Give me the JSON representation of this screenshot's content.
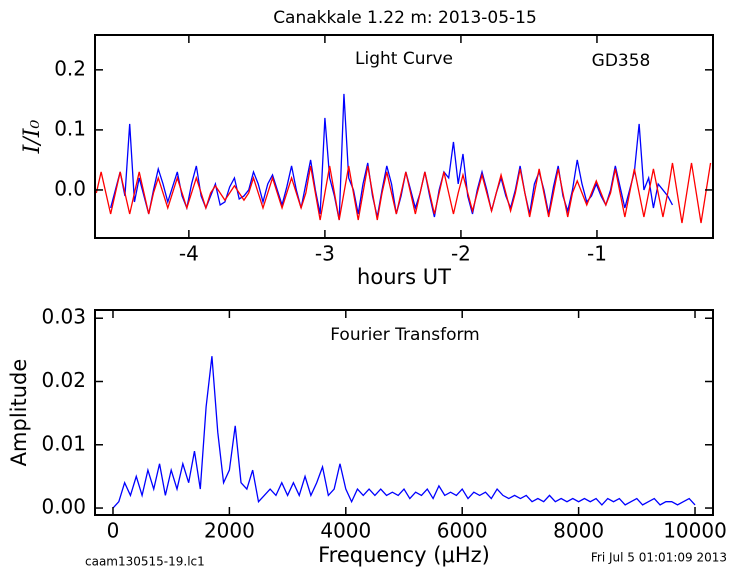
{
  "chart_data": [
    {
      "type": "line",
      "title": "Canakkale 1.22 m:  2013-05-15",
      "x_label": "hours UT",
      "y_label": "I/I₀",
      "annotations": [
        "Light Curve",
        "GD358"
      ],
      "xlim": [
        -4.69,
        -0.147
      ],
      "ylim": [
        -0.08,
        0.258
      ],
      "xticks": [
        -4,
        -3,
        -2,
        -1
      ],
      "yticks": [
        {
          "value": 0,
          "label": "0.0"
        },
        0.1,
        0.2
      ],
      "x": [
        -4.68,
        -4.645,
        -4.61,
        -4.575,
        -4.54,
        -4.505,
        -4.47,
        -4.435,
        -4.4,
        -4.365,
        -4.33,
        -4.295,
        -4.26,
        -4.225,
        -4.19,
        -4.155,
        -4.12,
        -4.085,
        -4.05,
        -4.015,
        -3.98,
        -3.945,
        -3.91,
        -3.875,
        -3.84,
        -3.805,
        -3.77,
        -3.735,
        -3.7,
        -3.665,
        -3.63,
        -3.595,
        -3.56,
        -3.525,
        -3.49,
        -3.455,
        -3.42,
        -3.385,
        -3.35,
        -3.315,
        -3.28,
        -3.245,
        -3.21,
        -3.175,
        -3.14,
        -3.105,
        -3.07,
        -3.035,
        -3.0,
        -2.965,
        -2.93,
        -2.895,
        -2.86,
        -2.825,
        -2.79,
        -2.755,
        -2.72,
        -2.685,
        -2.65,
        -2.615,
        -2.58,
        -2.545,
        -2.51,
        -2.475,
        -2.44,
        -2.405,
        -2.37,
        -2.335,
        -2.3,
        -2.265,
        -2.23,
        -2.195,
        -2.16,
        -2.125,
        -2.09,
        -2.055,
        -2.02,
        -1.985,
        -1.95,
        -1.915,
        -1.88,
        -1.845,
        -1.81,
        -1.775,
        -1.74,
        -1.705,
        -1.67,
        -1.635,
        -1.6,
        -1.565,
        -1.53,
        -1.495,
        -1.46,
        -1.425,
        -1.39,
        -1.355,
        -1.32,
        -1.285,
        -1.25,
        -1.215,
        -1.18,
        -1.145,
        -1.11,
        -1.075,
        -1.04,
        -1.005,
        -0.97,
        -0.935,
        -0.9,
        -0.865,
        -0.83,
        -0.795,
        -0.76,
        -0.725,
        -0.69,
        -0.655,
        -0.62,
        -0.585,
        -0.55,
        -0.515,
        -0.48,
        -0.445,
        -0.41,
        -0.375,
        -0.34,
        -0.305,
        -0.27,
        -0.235,
        -0.2,
        -0.165
      ],
      "series": [
        {
          "color": "#0000ff",
          "values": [
            null,
            null,
            null,
            -0.03,
            0.0,
            0.03,
            -0.01,
            0.11,
            -0.02,
            0.02,
            -0.01,
            -0.04,
            0.0,
            0.035,
            0.01,
            -0.02,
            0.005,
            0.03,
            -0.01,
            -0.03,
            0.01,
            0.04,
            -0.01,
            -0.03,
            -0.01,
            0.01,
            -0.025,
            -0.02,
            0.005,
            0.02,
            -0.015,
            -0.01,
            0.0,
            0.03,
            0.01,
            -0.02,
            0.01,
            0.025,
            0.0,
            -0.025,
            0.005,
            0.04,
            0.0,
            -0.03,
            0.01,
            0.05,
            0.0,
            -0.04,
            0.12,
            0.02,
            -0.01,
            -0.05,
            0.16,
            0.02,
            0.0,
            -0.04,
            0.01,
            0.045,
            -0.01,
            -0.045,
            0.0,
            0.04,
            0.01,
            -0.04,
            -0.01,
            0.03,
            0.0,
            -0.03,
            -0.005,
            0.03,
            -0.01,
            -0.045,
            0.0,
            0.03,
            0.02,
            0.08,
            0.01,
            0.06,
            -0.01,
            -0.04,
            0.0,
            0.03,
            0.0,
            -0.035,
            -0.005,
            0.02,
            -0.01,
            -0.03,
            0.0,
            0.04,
            -0.005,
            -0.04,
            0.01,
            0.03,
            0.0,
            -0.04,
            0.005,
            0.04,
            -0.01,
            -0.035,
            0.0,
            0.05,
            0.01,
            -0.02,
            -0.01,
            0.01,
            -0.01,
            -0.025,
            0.0,
            0.04,
            0.005,
            -0.03,
            0.0,
            0.03,
            0.11,
            0.0,
            0.02,
            -0.03,
            0.01,
            0.0,
            -0.01,
            -0.025,
            null,
            null,
            null,
            null,
            null,
            null,
            null,
            null
          ]
        },
        {
          "color": "#ff0000",
          "values": [
            -0.005,
            0.03,
            -0.005,
            -0.04,
            -0.005,
            0.03,
            -0.005,
            -0.04,
            -0.005,
            0.03,
            -0.005,
            -0.04,
            -0.005,
            0.02,
            -0.005,
            -0.03,
            -0.005,
            0.02,
            -0.005,
            -0.03,
            -0.005,
            0.02,
            -0.005,
            -0.03,
            -0.005,
            0.007,
            -0.005,
            -0.017,
            -0.005,
            0.007,
            -0.005,
            -0.017,
            -0.005,
            0.02,
            -0.005,
            -0.03,
            -0.005,
            0.02,
            -0.005,
            -0.03,
            -0.005,
            0.02,
            -0.005,
            -0.03,
            -0.005,
            0.04,
            -0.005,
            -0.05,
            -0.005,
            0.04,
            -0.005,
            -0.05,
            -0.005,
            0.04,
            -0.005,
            -0.05,
            -0.005,
            0.04,
            -0.005,
            -0.05,
            -0.005,
            0.03,
            -0.005,
            -0.04,
            -0.005,
            0.03,
            -0.005,
            -0.04,
            -0.005,
            0.03,
            -0.005,
            -0.04,
            -0.005,
            0.03,
            -0.005,
            -0.04,
            -0.005,
            0.025,
            -0.005,
            -0.035,
            -0.005,
            0.025,
            -0.005,
            -0.035,
            -0.005,
            0.025,
            -0.005,
            -0.035,
            -0.005,
            0.035,
            -0.005,
            -0.045,
            -0.005,
            0.035,
            -0.005,
            -0.045,
            -0.005,
            0.035,
            -0.005,
            -0.045,
            -0.005,
            0.015,
            -0.005,
            -0.025,
            -0.005,
            0.015,
            -0.005,
            -0.025,
            -0.005,
            0.035,
            -0.005,
            -0.045,
            -0.005,
            0.035,
            -0.005,
            -0.045,
            -0.005,
            0.035,
            -0.005,
            -0.045,
            -0.005,
            0.045,
            -0.005,
            -0.055,
            -0.005,
            0.045,
            -0.005,
            -0.055,
            -0.005,
            0.045
          ]
        }
      ]
    },
    {
      "type": "line",
      "x_label": "Frequency (μHz)",
      "y_label": "Amplitude",
      "annotations": [
        "Fourier Transform"
      ],
      "xlim": [
        -309,
        10309
      ],
      "ylim": [
        -0.0011,
        0.0313
      ],
      "xticks": [
        0,
        2000,
        4000,
        6000,
        8000,
        10000
      ],
      "yticks": [
        {
          "value": 0,
          "label": "0.00"
        },
        {
          "value": 0.01,
          "label": "0.01"
        },
        {
          "value": 0.02,
          "label": "0.02"
        },
        {
          "value": 0.03,
          "label": "0.03"
        }
      ],
      "x": [
        0,
        100,
        200,
        300,
        400,
        500,
        600,
        700,
        800,
        900,
        1000,
        1100,
        1200,
        1300,
        1400,
        1500,
        1600,
        1700,
        1800,
        1900,
        2000,
        2100,
        2200,
        2300,
        2400,
        2500,
        2600,
        2700,
        2800,
        2900,
        3000,
        3100,
        3200,
        3300,
        3400,
        3500,
        3600,
        3700,
        3800,
        3900,
        4000,
        4100,
        4200,
        4300,
        4400,
        4500,
        4600,
        4700,
        4800,
        4900,
        5000,
        5100,
        5200,
        5300,
        5400,
        5500,
        5600,
        5700,
        5800,
        5900,
        6000,
        6100,
        6200,
        6300,
        6400,
        6500,
        6600,
        6700,
        6800,
        6900,
        7000,
        7100,
        7200,
        7300,
        7400,
        7500,
        7600,
        7700,
        7800,
        7900,
        8000,
        8100,
        8200,
        8300,
        8400,
        8500,
        8600,
        8700,
        8800,
        8900,
        9000,
        9100,
        9200,
        9300,
        9400,
        9500,
        9600,
        9700,
        9800,
        9900,
        10000
      ],
      "series": [
        {
          "color": "#0000ff",
          "values": [
            0.0,
            0.001,
            0.004,
            0.002,
            0.005,
            0.002,
            0.006,
            0.003,
            0.007,
            0.002,
            0.006,
            0.003,
            0.007,
            0.004,
            0.009,
            0.003,
            0.016,
            0.024,
            0.012,
            0.004,
            0.006,
            0.013,
            0.004,
            0.003,
            0.006,
            0.001,
            0.002,
            0.003,
            0.002,
            0.004,
            0.002,
            0.004,
            0.002,
            0.005,
            0.002,
            0.004,
            0.0065,
            0.002,
            0.003,
            0.007,
            0.003,
            0.001,
            0.003,
            0.002,
            0.003,
            0.002,
            0.003,
            0.002,
            0.0025,
            0.002,
            0.003,
            0.0015,
            0.0025,
            0.002,
            0.003,
            0.0015,
            0.0035,
            0.002,
            0.0025,
            0.002,
            0.003,
            0.0015,
            0.0025,
            0.002,
            0.0025,
            0.0015,
            0.003,
            0.002,
            0.0015,
            0.002,
            0.0015,
            0.002,
            0.001,
            0.0015,
            0.001,
            0.002,
            0.001,
            0.0015,
            0.001,
            0.0015,
            0.001,
            0.0015,
            0.001,
            0.0015,
            0.0005,
            0.0015,
            0.001,
            0.0015,
            0.0005,
            0.001,
            0.0015,
            0.0005,
            0.001,
            0.0015,
            0.0005,
            0.001,
            0.001,
            0.0005,
            0.001,
            0.0015,
            0.0005
          ]
        }
      ]
    }
  ],
  "footer": {
    "file": "caam130515-19.lc1",
    "date": "Fri Jul  5 01:01:09 2013"
  }
}
